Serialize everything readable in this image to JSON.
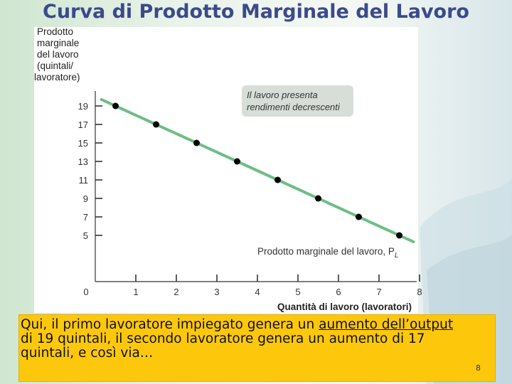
{
  "slide": {
    "title": "Curva di Prodotto Marginale del Lavoro",
    "caption": {
      "part1": "Qui, il primo lavoratore impiegato genera un ",
      "link1": "aumento dell’output",
      "part2": " di 19 quintali, il secondo lavoratore genera un aumento di 17 quintali, e così via…"
    },
    "slide_number": "8"
  },
  "colors": {
    "title": "#3b4a8a",
    "line": "#6dbe84",
    "point": "#000000",
    "annotation_bg": "#d7ded8",
    "caption_bg": "#fdc80c"
  },
  "chart_data": {
    "type": "line",
    "ylabel": "Prodotto marginale del lavoro (quintali/ lavoratore)",
    "xlabel": "Quantità di lavoro (lavoratori)",
    "x_ticks": [
      "0",
      "1",
      "2",
      "3",
      "4",
      "5",
      "6",
      "7",
      "8"
    ],
    "y_ticks": [
      "5",
      "7",
      "9",
      "11",
      "13",
      "15",
      "17",
      "19"
    ],
    "xlim": [
      0,
      8
    ],
    "series": [
      {
        "name": "Prodotto marginale del lavoro, P",
        "name_subscript": "L",
        "x": [
          0.5,
          1.5,
          2.5,
          3.5,
          4.5,
          5.5,
          6.5,
          7.5
        ],
        "y": [
          19,
          17,
          15,
          13,
          11,
          9,
          7,
          5
        ]
      }
    ],
    "annotation": "Il lavoro presenta rendimenti decrescenti",
    "grid": false
  }
}
